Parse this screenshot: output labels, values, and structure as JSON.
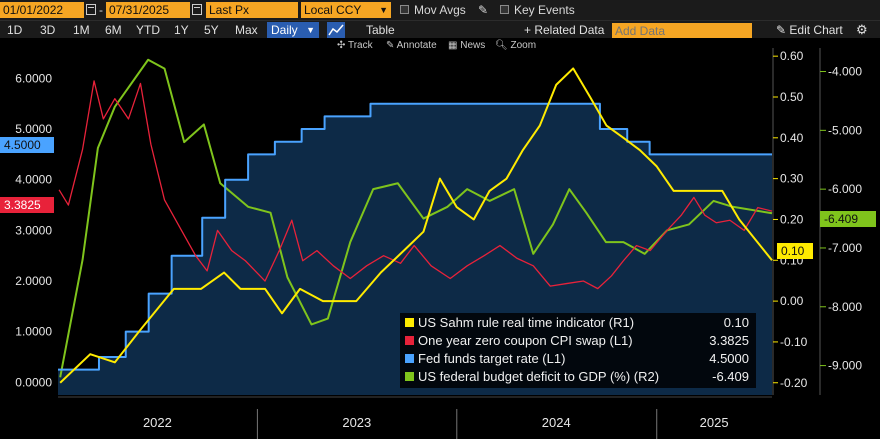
{
  "toolbar": {
    "start_date": "01/01/2022",
    "end_date": "07/31/2025",
    "field": "Last Px",
    "currency": "Local CCY",
    "mov_avgs_label": "Mov Avgs",
    "key_events_label": "Key Events"
  },
  "periods": [
    "1D",
    "3D",
    "1M",
    "6M",
    "YTD",
    "1Y",
    "5Y",
    "Max"
  ],
  "frequency": "Daily",
  "table_label": "Table",
  "related_data_label": "+ Related Data",
  "add_data_placeholder": "Add Data",
  "edit_chart_label": "Edit Chart",
  "plot_tools": {
    "track": "Track",
    "annotate": "Annotate",
    "news": "News",
    "zoom": "Zoom"
  },
  "colors": {
    "sahm": "#ffeb00",
    "cpi": "#e8223a",
    "fed": "#4aa3ff",
    "deficit": "#7fc41c",
    "area": "#0d2a47",
    "accent": "#f6a623"
  },
  "chart_data": {
    "type": "line",
    "x_range": [
      "2022-01-01",
      "2025-07-31"
    ],
    "x_ticks": [
      "2022",
      "2023",
      "2024",
      "2025"
    ],
    "left_axis": {
      "range": [
        -0.25,
        6.6
      ],
      "ticks": [
        "0.0000",
        "1.0000",
        "2.0000",
        "3.0000",
        "4.0000",
        "5.0000",
        "6.0000"
      ]
    },
    "right1_axis": {
      "range": [
        -0.23,
        0.62
      ],
      "ticks": [
        "-0.20",
        "-0.10",
        "0.00",
        "0.10",
        "0.20",
        "0.30",
        "0.40",
        "0.50",
        "0.60"
      ]
    },
    "right2_axis": {
      "range": [
        -9.5,
        -3.6
      ],
      "ticks": [
        "-9.000",
        "-8.000",
        "-7.000",
        "-6.000",
        "-5.000",
        "-4.000"
      ]
    },
    "tags": {
      "fed_last": "4.5000",
      "cpi_last": "3.3825",
      "deficit_last": "-6.409",
      "sahm_last": "0.10"
    },
    "series": [
      {
        "name": "US Sahm rule real time indicator (R1)",
        "last": "0.10",
        "axis": "right1",
        "points": [
          [
            "2022-01-05",
            -0.2
          ],
          [
            "2022-03-01",
            -0.13
          ],
          [
            "2022-04-15",
            -0.15
          ],
          [
            "2022-06-01",
            -0.07
          ],
          [
            "2022-08-01",
            0.03
          ],
          [
            "2022-09-20",
            0.03
          ],
          [
            "2022-11-01",
            0.07
          ],
          [
            "2022-12-01",
            0.03
          ],
          [
            "2023-01-15",
            0.03
          ],
          [
            "2023-02-15",
            -0.03
          ],
          [
            "2023-03-20",
            0.03
          ],
          [
            "2023-05-01",
            0.0
          ],
          [
            "2023-07-01",
            0.0
          ],
          [
            "2023-08-15",
            0.07
          ],
          [
            "2023-10-01",
            0.13
          ],
          [
            "2023-11-01",
            0.17
          ],
          [
            "2023-12-01",
            0.3
          ],
          [
            "2024-01-01",
            0.23
          ],
          [
            "2024-02-01",
            0.2
          ],
          [
            "2024-03-01",
            0.27
          ],
          [
            "2024-04-01",
            0.3
          ],
          [
            "2024-05-01",
            0.37
          ],
          [
            "2024-06-01",
            0.43
          ],
          [
            "2024-07-01",
            0.53
          ],
          [
            "2024-08-01",
            0.57
          ],
          [
            "2024-09-01",
            0.5
          ],
          [
            "2024-10-01",
            0.43
          ],
          [
            "2024-11-01",
            0.4
          ],
          [
            "2024-12-01",
            0.37
          ],
          [
            "2025-01-01",
            0.33
          ],
          [
            "2025-02-01",
            0.27
          ],
          [
            "2025-05-01",
            0.27
          ],
          [
            "2025-06-01",
            0.2
          ],
          [
            "2025-07-31",
            0.1
          ]
        ]
      },
      {
        "name": "One year zero coupon CPI swap (L1)",
        "last": "3.3825",
        "axis": "left",
        "points": [
          [
            "2022-01-03",
            3.8
          ],
          [
            "2022-01-20",
            3.5
          ],
          [
            "2022-02-15",
            4.6
          ],
          [
            "2022-03-08",
            5.95
          ],
          [
            "2022-03-25",
            5.2
          ],
          [
            "2022-04-15",
            5.6
          ],
          [
            "2022-05-10",
            5.2
          ],
          [
            "2022-06-01",
            5.9
          ],
          [
            "2022-06-20",
            4.7
          ],
          [
            "2022-07-15",
            3.6
          ],
          [
            "2022-08-15",
            3.0
          ],
          [
            "2022-09-10",
            2.5
          ],
          [
            "2022-10-01",
            2.2
          ],
          [
            "2022-10-20",
            3.0
          ],
          [
            "2022-11-15",
            2.6
          ],
          [
            "2022-12-10",
            2.4
          ],
          [
            "2023-01-15",
            2.0
          ],
          [
            "2023-02-10",
            2.6
          ],
          [
            "2023-03-05",
            3.2
          ],
          [
            "2023-03-25",
            2.4
          ],
          [
            "2023-04-20",
            2.6
          ],
          [
            "2023-05-20",
            2.3
          ],
          [
            "2023-06-20",
            2.05
          ],
          [
            "2023-07-20",
            2.3
          ],
          [
            "2023-08-20",
            2.5
          ],
          [
            "2023-09-20",
            2.35
          ],
          [
            "2023-10-15",
            2.7
          ],
          [
            "2023-11-15",
            2.3
          ],
          [
            "2023-12-20",
            2.05
          ],
          [
            "2024-01-20",
            2.3
          ],
          [
            "2024-02-20",
            2.5
          ],
          [
            "2024-03-20",
            2.7
          ],
          [
            "2024-04-20",
            2.45
          ],
          [
            "2024-05-20",
            2.3
          ],
          [
            "2024-06-20",
            1.9
          ],
          [
            "2024-07-20",
            1.95
          ],
          [
            "2024-08-20",
            2.0
          ],
          [
            "2024-09-15",
            1.85
          ],
          [
            "2024-10-10",
            2.1
          ],
          [
            "2024-11-01",
            2.4
          ],
          [
            "2024-11-25",
            2.7
          ],
          [
            "2024-12-20",
            2.6
          ],
          [
            "2025-01-20",
            3.0
          ],
          [
            "2025-02-15",
            3.3
          ],
          [
            "2025-03-10",
            3.65
          ],
          [
            "2025-03-30",
            3.3
          ],
          [
            "2025-04-20",
            3.15
          ],
          [
            "2025-05-15",
            3.2
          ],
          [
            "2025-06-10",
            3.0
          ],
          [
            "2025-07-05",
            3.45
          ],
          [
            "2025-07-31",
            3.38
          ]
        ]
      },
      {
        "name": "Fed funds target rate (L1)",
        "last": "4.5000",
        "axis": "left",
        "step": true,
        "points": [
          [
            "2022-01-01",
            0.25
          ],
          [
            "2022-03-17",
            0.5
          ],
          [
            "2022-05-05",
            1.0
          ],
          [
            "2022-06-16",
            1.75
          ],
          [
            "2022-07-28",
            2.5
          ],
          [
            "2022-09-22",
            3.25
          ],
          [
            "2022-11-03",
            4.0
          ],
          [
            "2022-12-15",
            4.5
          ],
          [
            "2023-02-02",
            4.75
          ],
          [
            "2023-03-23",
            5.0
          ],
          [
            "2023-05-04",
            5.25
          ],
          [
            "2023-07-27",
            5.5
          ],
          [
            "2024-09-19",
            5.0
          ],
          [
            "2024-11-08",
            4.75
          ],
          [
            "2024-12-19",
            4.5
          ],
          [
            "2025-07-31",
            4.5
          ]
        ]
      },
      {
        "name": "US federal budget deficit to GDP (%) (R2)",
        "last": "-6.409",
        "axis": "right2",
        "points": [
          [
            "2022-01-05",
            -9.2
          ],
          [
            "2022-02-15",
            -7.2
          ],
          [
            "2022-03-15",
            -5.3
          ],
          [
            "2022-04-15",
            -4.6
          ],
          [
            "2022-06-15",
            -3.8
          ],
          [
            "2022-07-15",
            -3.95
          ],
          [
            "2022-08-20",
            -5.2
          ],
          [
            "2022-09-25",
            -4.9
          ],
          [
            "2022-10-25",
            -5.9
          ],
          [
            "2022-12-15",
            -6.3
          ],
          [
            "2023-01-25",
            -6.4
          ],
          [
            "2023-02-25",
            -7.5
          ],
          [
            "2023-04-10",
            -8.3
          ],
          [
            "2023-05-10",
            -8.2
          ],
          [
            "2023-06-20",
            -6.9
          ],
          [
            "2023-08-01",
            -6.0
          ],
          [
            "2023-09-15",
            -5.9
          ],
          [
            "2023-11-01",
            -6.5
          ],
          [
            "2023-12-15",
            -6.3
          ],
          [
            "2024-01-20",
            -6.0
          ],
          [
            "2024-03-01",
            -6.2
          ],
          [
            "2024-04-15",
            -6.0
          ],
          [
            "2024-05-20",
            -7.1
          ],
          [
            "2024-06-25",
            -6.6
          ],
          [
            "2024-07-25",
            -6.0
          ],
          [
            "2024-08-25",
            -6.4
          ],
          [
            "2024-09-30",
            -6.9
          ],
          [
            "2024-11-01",
            -6.9
          ],
          [
            "2024-12-10",
            -7.1
          ],
          [
            "2025-01-20",
            -6.7
          ],
          [
            "2025-03-01",
            -6.6
          ],
          [
            "2025-04-15",
            -6.2
          ],
          [
            "2025-05-20",
            -6.3
          ],
          [
            "2025-07-31",
            -6.409
          ]
        ]
      }
    ]
  }
}
